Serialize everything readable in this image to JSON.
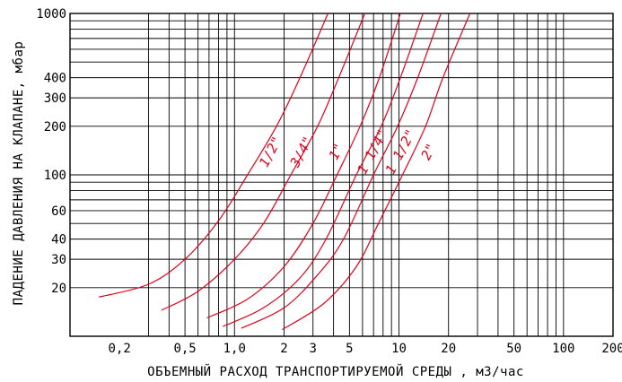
{
  "chart_data": {
    "type": "line",
    "xlabel": "ОБЪЕМНЫЙ РАСХОД ТРАНСПОРТИРУЕМОЙ СРЕДЫ , м3/час",
    "ylabel": "ПАДЕНИЕ ДАВЛЕНИЯ НА КЛАПАНЕ, мбар",
    "x_scale": "log",
    "y_scale": "log",
    "xlim": [
      0.1,
      200
    ],
    "ylim": [
      10,
      1000
    ],
    "grid": true,
    "x_tick_values": [
      0.2,
      0.5,
      1.0,
      2,
      3,
      5,
      10,
      20,
      50,
      100,
      200
    ],
    "x_tick_labels": [
      "0,2",
      "0,5",
      "1,0",
      "2",
      "3",
      "5",
      "10",
      "20",
      "50",
      "100",
      "200"
    ],
    "y_tick_values": [
      20,
      30,
      40,
      60,
      100,
      200,
      300,
      400,
      1000
    ],
    "y_tick_labels": [
      "20",
      "30",
      "40",
      "60",
      "100",
      "200",
      "300",
      "400",
      "1000"
    ],
    "x_grid_values": [
      0.3,
      0.4,
      0.5,
      0.6,
      0.7,
      0.8,
      0.9,
      1,
      2,
      3,
      4,
      5,
      6,
      7,
      8,
      9,
      10,
      20,
      30,
      40,
      50,
      60,
      70,
      80,
      90,
      100
    ],
    "y_grid_values": [
      20,
      30,
      40,
      50,
      60,
      70,
      80,
      90,
      100,
      200,
      300,
      400,
      500,
      600,
      700,
      800,
      900
    ],
    "line_color": "#e0001a",
    "series": [
      {
        "name": "1/2\"",
        "label_at": [
          1.75,
          135
        ],
        "label_rotate": -62,
        "points": [
          [
            0.15,
            17.5
          ],
          [
            0.3,
            21
          ],
          [
            0.5,
            30
          ],
          [
            0.8,
            52
          ],
          [
            1.2,
            100
          ],
          [
            1.8,
            200
          ],
          [
            2.5,
            400
          ],
          [
            3.7,
            1000
          ]
        ]
      },
      {
        "name": "3/4\"",
        "label_at": [
          2.7,
          135
        ],
        "label_rotate": -62,
        "points": [
          [
            0.36,
            14.5
          ],
          [
            0.6,
            19
          ],
          [
            1.0,
            30
          ],
          [
            1.5,
            50
          ],
          [
            2.2,
            100
          ],
          [
            3.2,
            200
          ],
          [
            4.3,
            400
          ],
          [
            6.2,
            1000
          ]
        ]
      },
      {
        "name": "1\"",
        "label_at": [
          4.4,
          135
        ],
        "label_rotate": -62,
        "points": [
          [
            0.68,
            13
          ],
          [
            1.2,
            17
          ],
          [
            2.0,
            27
          ],
          [
            3.0,
            50
          ],
          [
            4.2,
            100
          ],
          [
            5.8,
            200
          ],
          [
            7.6,
            400
          ],
          [
            10.2,
            1000
          ]
        ]
      },
      {
        "name": "1 1/4\"",
        "label_at": [
          7.3,
          135
        ],
        "label_rotate": -62,
        "points": [
          [
            0.85,
            11.5
          ],
          [
            1.5,
            15
          ],
          [
            2.5,
            23
          ],
          [
            3.6,
            40
          ],
          [
            5.5,
            100
          ],
          [
            7.8,
            200
          ],
          [
            10.2,
            400
          ],
          [
            14,
            1000
          ]
        ]
      },
      {
        "name": "1 1/2\"",
        "label_at": [
          10.8,
          135
        ],
        "label_rotate": -62,
        "points": [
          [
            1.1,
            11.2
          ],
          [
            2.0,
            15
          ],
          [
            3.2,
            24
          ],
          [
            4.6,
            40
          ],
          [
            7.0,
            100
          ],
          [
            9.8,
            200
          ],
          [
            13,
            400
          ],
          [
            18,
            1000
          ]
        ]
      },
      {
        "name": "2\"",
        "label_at": [
          16,
          135
        ],
        "label_rotate": -62,
        "points": [
          [
            1.95,
            11
          ],
          [
            3.5,
            16
          ],
          [
            5.5,
            27
          ],
          [
            7.5,
            50
          ],
          [
            10.5,
            100
          ],
          [
            14.5,
            200
          ],
          [
            18.5,
            400
          ],
          [
            27,
            1000
          ]
        ]
      }
    ]
  }
}
